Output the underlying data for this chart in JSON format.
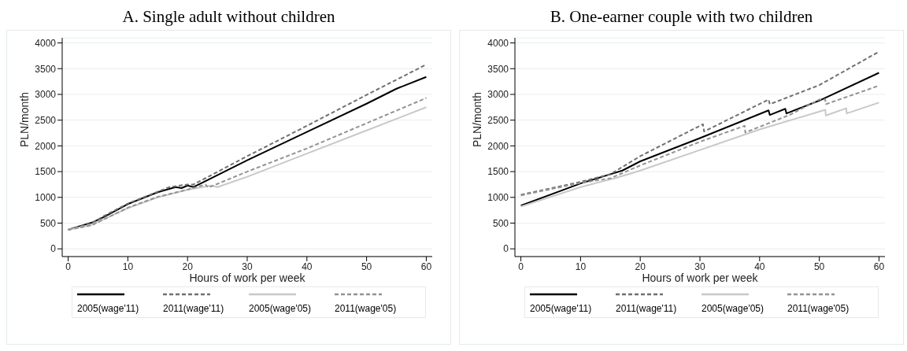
{
  "chart_data": [
    {
      "type": "line",
      "title": "A. Single adult without children",
      "xlabel": "Hours of work per week",
      "ylabel": "PLN/month",
      "xlim": [
        -1,
        61
      ],
      "xticks": [
        0,
        10,
        20,
        30,
        40,
        50,
        60
      ],
      "ylim": [
        -150,
        4100
      ],
      "yticks": [
        0,
        500,
        1000,
        1500,
        2000,
        2500,
        3000,
        3500,
        4000
      ],
      "grid": "y",
      "legend": "bottom",
      "series": [
        {
          "name": "2005(wage'11)",
          "color": "#000000",
          "line_style": "solid",
          "x": [
            0,
            4,
            6,
            10,
            15,
            18,
            19,
            20,
            21,
            30,
            40,
            50,
            55,
            60
          ],
          "values": [
            370,
            510,
            620,
            870,
            1100,
            1200,
            1180,
            1230,
            1200,
            1720,
            2270,
            2820,
            3110,
            3340
          ]
        },
        {
          "name": "2011(wage'11)",
          "color": "#707070",
          "line_style": "dashed",
          "x": [
            0,
            4,
            6,
            10,
            15,
            17,
            20,
            21,
            30,
            40,
            50,
            60
          ],
          "values": [
            370,
            500,
            640,
            880,
            1110,
            1200,
            1250,
            1250,
            1800,
            2390,
            2990,
            3580
          ]
        },
        {
          "name": "2005(wage'05)",
          "color": "#c8c8c8",
          "line_style": "solid",
          "x": [
            0,
            4,
            10,
            15,
            20,
            24,
            25,
            30,
            40,
            50,
            60
          ],
          "values": [
            370,
            470,
            790,
            1000,
            1150,
            1230,
            1200,
            1400,
            1850,
            2300,
            2750
          ]
        },
        {
          "name": "2011(wage'05)",
          "color": "#939393",
          "line_style": "dashed",
          "x": [
            0,
            4,
            10,
            15,
            20,
            23,
            23.5,
            30,
            40,
            50,
            60
          ],
          "values": [
            370,
            460,
            800,
            1010,
            1150,
            1250,
            1190,
            1500,
            1950,
            2440,
            2930
          ]
        }
      ]
    },
    {
      "type": "line",
      "title": "B. One-earner couple with two children",
      "xlabel": "Hours of work per week",
      "ylabel": "PLN/month",
      "xlim": [
        -1,
        61
      ],
      "xticks": [
        0,
        10,
        20,
        30,
        40,
        50,
        60
      ],
      "ylim": [
        -150,
        4100
      ],
      "yticks": [
        0,
        500,
        1000,
        1500,
        2000,
        2500,
        3000,
        3500,
        4000
      ],
      "grid": "y",
      "legend": "bottom",
      "series": [
        {
          "name": "2005(wage'11)",
          "color": "#000000",
          "line_style": "solid",
          "x": [
            0,
            10,
            15,
            17,
            20,
            30,
            41.5,
            41.7,
            44.3,
            44.5,
            50,
            60
          ],
          "values": [
            840,
            1270,
            1450,
            1520,
            1700,
            2150,
            2690,
            2600,
            2720,
            2630,
            2880,
            3420
          ]
        },
        {
          "name": "2011(wage'11)",
          "color": "#707070",
          "line_style": "dashed",
          "x": [
            0,
            10,
            15,
            20,
            30.5,
            30.7,
            41.5,
            41.7,
            50,
            60
          ],
          "values": [
            1050,
            1300,
            1450,
            1800,
            2420,
            2280,
            2900,
            2810,
            3180,
            3830
          ]
        },
        {
          "name": "2005(wage'05)",
          "color": "#c8c8c8",
          "line_style": "solid",
          "x": [
            0,
            10,
            16,
            20,
            30,
            40,
            51,
            51.1,
            54.5,
            54.6,
            60
          ],
          "values": [
            820,
            1200,
            1380,
            1520,
            1920,
            2320,
            2700,
            2590,
            2730,
            2630,
            2840
          ]
        },
        {
          "name": "2011(wage'05)",
          "color": "#939393",
          "line_style": "dashed",
          "x": [
            0,
            10,
            15,
            20,
            30,
            37.5,
            37.6,
            45,
            50,
            51,
            51.1,
            60
          ],
          "values": [
            1040,
            1280,
            1370,
            1620,
            2080,
            2390,
            2260,
            2600,
            2900,
            2900,
            2810,
            3170
          ]
        }
      ]
    }
  ]
}
